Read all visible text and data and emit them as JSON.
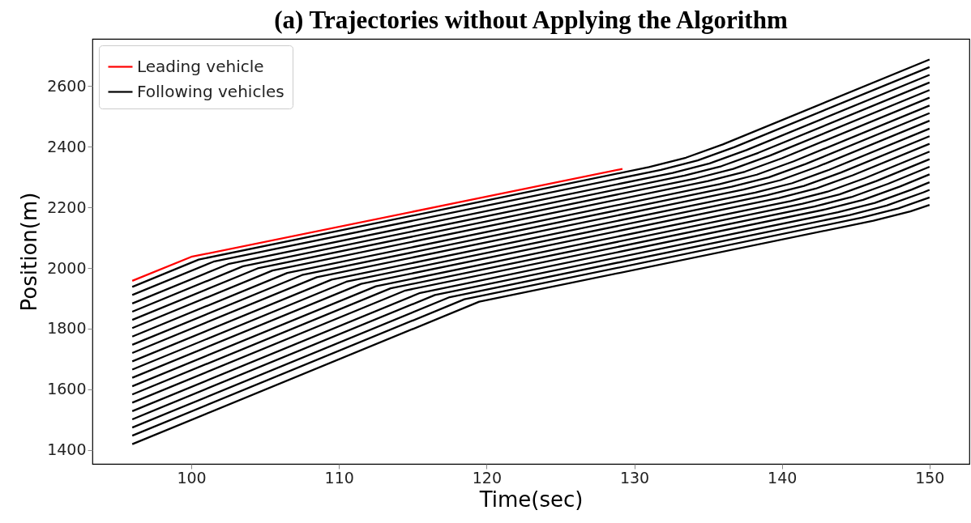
{
  "chart_data": {
    "type": "line",
    "title": "(a) Trajectories without Applying the Algorithm",
    "xlabel": "Time(sec)",
    "ylabel": "Position(m)",
    "xlim": [
      93.3,
      152.7
    ],
    "ylim": [
      1354,
      2756
    ],
    "xticks": [
      100,
      110,
      120,
      130,
      140,
      150
    ],
    "yticks": [
      1400,
      1600,
      1800,
      2000,
      2200,
      2400,
      2600
    ],
    "grid": false,
    "legend": "top left",
    "marker": "none",
    "line_style": "solid",
    "series": [
      {
        "name": "Leading vehicle",
        "color": "#ff0000",
        "x": [
          96,
          100,
          129.2
        ],
        "values": [
          1958,
          2037,
          2327
        ]
      },
      {
        "name": "Following vehicles",
        "color": "#000000",
        "x": [
          96,
          100.5,
          131,
          133.5,
          136,
          150
        ],
        "values": [
          1938,
          2028,
          2333,
          2364,
          2408,
          2688
        ]
      },
      {
        "color": "#000000",
        "x": [
          96,
          101.5,
          131.8,
          134.3,
          136.8,
          150
        ],
        "values": [
          1911,
          2021,
          2324,
          2355,
          2399,
          2663
        ]
      },
      {
        "color": "#000000",
        "x": [
          96,
          102.5,
          132.6,
          135.1,
          137.6,
          150
        ],
        "values": [
          1883,
          2013,
          2314,
          2345,
          2389,
          2637
        ]
      },
      {
        "color": "#000000",
        "x": [
          96,
          103.5,
          133.4,
          135.9,
          138.4,
          150
        ],
        "values": [
          1856,
          2006,
          2305,
          2336,
          2380,
          2612
        ]
      },
      {
        "color": "#000000",
        "x": [
          96,
          104.5,
          134.2,
          136.7,
          139.2,
          150
        ],
        "values": [
          1829,
          1999,
          2296,
          2327,
          2371,
          2587
        ]
      },
      {
        "color": "#000000",
        "x": [
          96,
          105.5,
          135,
          137.5,
          140,
          150
        ],
        "values": [
          1802,
          1992,
          2287,
          2318,
          2362,
          2562
        ]
      },
      {
        "color": "#000000",
        "x": [
          96,
          106.5,
          135.8,
          138.3,
          140.8,
          150
        ],
        "values": [
          1774,
          1984,
          2277,
          2308,
          2352,
          2536
        ]
      },
      {
        "color": "#000000",
        "x": [
          96,
          107.5,
          136.6,
          139.1,
          141.6,
          150
        ],
        "values": [
          1747,
          1977,
          2268,
          2299,
          2343,
          2511
        ]
      },
      {
        "color": "#000000",
        "x": [
          96,
          108.5,
          137.4,
          139.9,
          142.4,
          150
        ],
        "values": [
          1720,
          1970,
          2259,
          2290,
          2334,
          2486
        ]
      },
      {
        "color": "#000000",
        "x": [
          96,
          109.5,
          138.2,
          140.7,
          143.2,
          150
        ],
        "values": [
          1692,
          1962,
          2249,
          2280,
          2324,
          2460
        ]
      },
      {
        "color": "#000000",
        "x": [
          96,
          110.5,
          139,
          141.5,
          144,
          150
        ],
        "values": [
          1665,
          1955,
          2240,
          2271,
          2315,
          2435
        ]
      },
      {
        "color": "#000000",
        "x": [
          96,
          111.5,
          139.8,
          142.3,
          144.8,
          150
        ],
        "values": [
          1638,
          1948,
          2231,
          2262,
          2306,
          2410
        ]
      },
      {
        "color": "#000000",
        "x": [
          96,
          112.5,
          140.6,
          143.1,
          145.6,
          150
        ],
        "values": [
          1610,
          1940,
          2221,
          2252,
          2296,
          2384
        ]
      },
      {
        "color": "#000000",
        "x": [
          96,
          113.5,
          141.4,
          143.9,
          146.4,
          150
        ],
        "values": [
          1583,
          1933,
          2212,
          2243,
          2287,
          2359
        ]
      },
      {
        "color": "#000000",
        "x": [
          96,
          114.5,
          142.2,
          144.7,
          147.2,
          150
        ],
        "values": [
          1556,
          1926,
          2203,
          2234,
          2278,
          2334
        ]
      },
      {
        "color": "#000000",
        "x": [
          96,
          115.5,
          143,
          145.5,
          148,
          150
        ],
        "values": [
          1528,
          1918,
          2194,
          2225,
          2269,
          2309
        ]
      },
      {
        "color": "#000000",
        "x": [
          96,
          116.5,
          143.8,
          146.3,
          148.8,
          150
        ],
        "values": [
          1501,
          1911,
          2184,
          2215,
          2259,
          2283
        ]
      },
      {
        "color": "#000000",
        "x": [
          96,
          117.5,
          144.6,
          147.1,
          149.6,
          150
        ],
        "values": [
          1474,
          1904,
          2175,
          2206,
          2250,
          2258
        ]
      },
      {
        "color": "#000000",
        "x": [
          96,
          118.5,
          145.4,
          147.9,
          150
        ],
        "values": [
          1447,
          1897,
          2166,
          2197,
          2233
        ]
      },
      {
        "color": "#000000",
        "x": [
          96,
          119.5,
          146.2,
          148.7,
          150
        ],
        "values": [
          1419,
          1889,
          2156,
          2187,
          2208
        ]
      }
    ]
  }
}
